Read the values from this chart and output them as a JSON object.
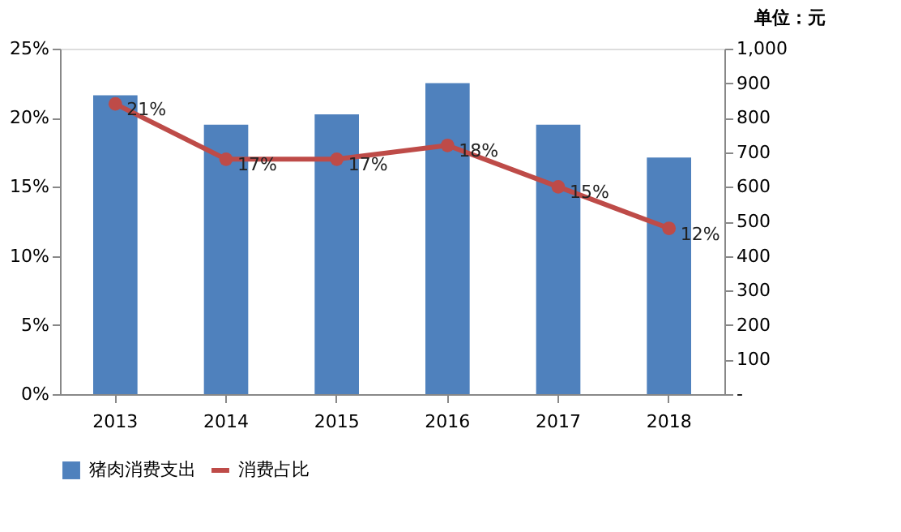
{
  "chart_data": {
    "type": "bar",
    "categories": [
      "2013",
      "2014",
      "2015",
      "2016",
      "2017",
      "2018"
    ],
    "y2label": "单位：元",
    "ylim": [
      0,
      25
    ],
    "yticks": [
      {
        "value": 0,
        "label": "0%"
      },
      {
        "value": 5,
        "label": "5%"
      },
      {
        "value": 10,
        "label": "10%"
      },
      {
        "value": 15,
        "label": "15%"
      },
      {
        "value": 20,
        "label": "20%"
      },
      {
        "value": 25,
        "label": "25%"
      }
    ],
    "y2lim": [
      0,
      1000
    ],
    "y2ticks": [
      {
        "value": 0,
        "label": "-"
      },
      100,
      200,
      300,
      400,
      500,
      600,
      700,
      800,
      900,
      {
        "value": 1000,
        "label": "1,000"
      }
    ],
    "series": [
      {
        "name": "猪肉消费支出",
        "axis": "y2",
        "color": "#4f81bd",
        "values": [
          865,
          780,
          810,
          900,
          780,
          685
        ]
      },
      {
        "name": "消费占比",
        "type": "line",
        "color": "#be4b48",
        "marker": "circle",
        "values": [
          21,
          17,
          17,
          18,
          15,
          12
        ],
        "value_labels": [
          "21%",
          "17%",
          "17%",
          "18%",
          "15%",
          "12%"
        ]
      }
    ],
    "legend": "bottom",
    "grid": false
  }
}
